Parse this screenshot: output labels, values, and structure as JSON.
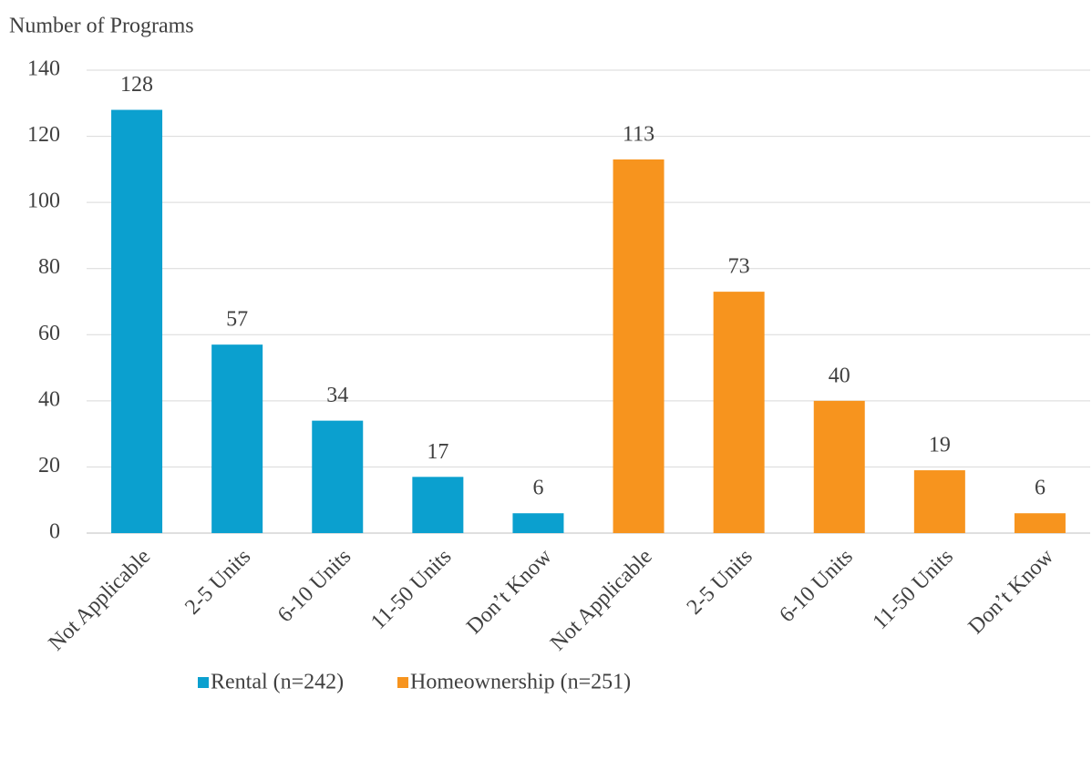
{
  "chart_data": {
    "type": "bar",
    "y_axis_label": "Number of Programs",
    "categories": [
      "Not Applicable",
      "2-5 Units",
      "6-10 Units",
      "11-50 Units",
      "Don’t Know",
      "Not Applicable",
      "2-5 Units",
      "6-10 Units",
      "11-50 Units",
      "Don’t Know"
    ],
    "series": [
      {
        "name": "Rental (n=242)",
        "color": "#0ba0cf",
        "values": [
          128,
          57,
          34,
          17,
          6,
          null,
          null,
          null,
          null,
          null
        ]
      },
      {
        "name": "Homeownership (n=251)",
        "color": "#f7941e",
        "values": [
          null,
          null,
          null,
          null,
          null,
          113,
          73,
          40,
          19,
          6
        ]
      }
    ],
    "ylim": [
      0,
      140
    ],
    "yticks": [
      0,
      20,
      40,
      60,
      80,
      100,
      120,
      140
    ],
    "grid": true,
    "legend": "bottom"
  }
}
